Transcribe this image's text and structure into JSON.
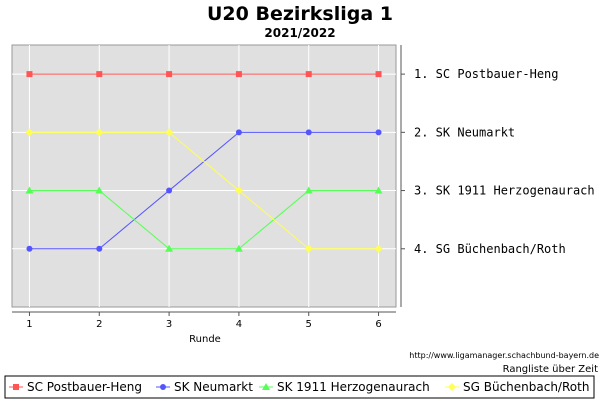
{
  "chart_data": {
    "type": "line",
    "title": "U20 Bezirksliga 1",
    "subtitle": "2021/2022",
    "xlabel": "Runde",
    "ylabel": "",
    "x": [
      1,
      2,
      3,
      4,
      5,
      6
    ],
    "xlim": [
      0.75,
      6.25
    ],
    "ylim": [
      5,
      0.5
    ],
    "y_inverted": true,
    "grid": true,
    "legend_position": "bottom",
    "ranking_labels": [
      "1. SC Postbauer-Heng",
      "2. SK Neumarkt",
      "3. SK 1911 Herzogenaurach",
      "4. SG Büchenbach/Roth"
    ],
    "note": "Rangliste über Zeit",
    "source": "http://www.ligamanager.schachbund-bayern.de",
    "series": [
      {
        "name": "SC Postbauer-Heng",
        "values": [
          1,
          1,
          1,
          1,
          1,
          1
        ],
        "color": "#ff5555",
        "marker": "square"
      },
      {
        "name": "SK Neumarkt",
        "values": [
          4,
          4,
          3,
          2,
          2,
          2
        ],
        "color": "#5555ff",
        "marker": "circle"
      },
      {
        "name": "SK 1911 Herzogenaurach",
        "values": [
          3,
          3,
          4,
          4,
          3,
          3
        ],
        "color": "#55ff55",
        "marker": "triangle"
      },
      {
        "name": "SG Büchenbach/Roth",
        "values": [
          2,
          2,
          2,
          3,
          4,
          4
        ],
        "color": "#ffff55",
        "marker": "diamond"
      }
    ]
  }
}
